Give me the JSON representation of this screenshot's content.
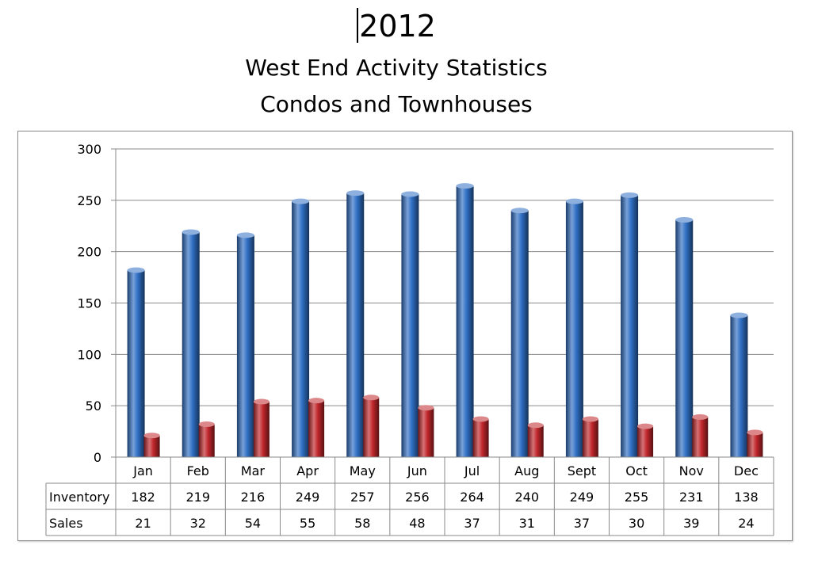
{
  "header": {
    "year": "2012",
    "title": "West End Activity Statistics",
    "subtitle": "Condos and Townhouses"
  },
  "colors": {
    "inventory": "#2f6fc4",
    "sales": "#c0262b",
    "grid": "#8a8a8a"
  },
  "chart_data": {
    "type": "bar",
    "title": "West End Activity Statistics",
    "subtitle": "Condos and Townhouses",
    "categories": [
      "Jan",
      "Feb",
      "Mar",
      "Apr",
      "May",
      "Jun",
      "Jul",
      "Aug",
      "Sept",
      "Oct",
      "Nov",
      "Dec"
    ],
    "series": [
      {
        "name": "Inventory",
        "values": [
          182,
          219,
          216,
          249,
          257,
          256,
          264,
          240,
          249,
          255,
          231,
          138
        ]
      },
      {
        "name": "Sales",
        "values": [
          21,
          32,
          54,
          55,
          58,
          48,
          37,
          31,
          37,
          30,
          39,
          24
        ]
      }
    ],
    "ylim": [
      0,
      300
    ],
    "yticks": [
      0,
      50,
      100,
      150,
      200,
      250,
      300
    ],
    "grid": true,
    "legend": "data table below chart",
    "bar_style": "3d-cylinder"
  }
}
